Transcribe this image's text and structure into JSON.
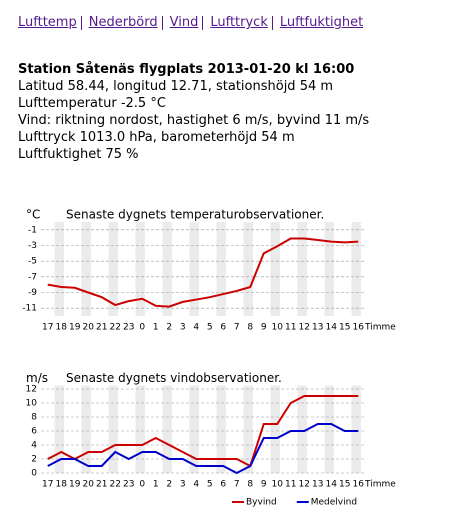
{
  "nav": {
    "links": [
      "Lufttemp",
      "Nederbörd",
      "Vind",
      "Lufttryck",
      "Luftfuktighet"
    ]
  },
  "station": {
    "title": "Station Såtenäs flygplats 2013-01-20 kl 16:00",
    "lines": [
      "Latitud 58.44,  longitud 12.71,  stationshöjd 54 m",
      "Lufttemperatur -2.5 °C",
      "Vind:  riktning nordost,  hastighet 6 m/s,  byvind 11 m/s",
      "Lufttryck 1013.0 hPa,  barometerhöjd 54 m",
      "Luftfuktighet 75 %"
    ]
  },
  "chart_data": [
    {
      "type": "line",
      "title": "Senaste dygnets temperaturobservationer.",
      "y_label": "°C",
      "x_label": "Timme",
      "categories": [
        "17",
        "18",
        "19",
        "20",
        "21",
        "22",
        "23",
        "0",
        "1",
        "2",
        "3",
        "4",
        "5",
        "6",
        "7",
        "8",
        "9",
        "10",
        "11",
        "12",
        "13",
        "14",
        "15",
        "16"
      ],
      "values": [
        -8.0,
        -8.3,
        -8.4,
        -9.0,
        -9.6,
        -10.6,
        -10.1,
        -9.8,
        -10.7,
        -10.8,
        -10.2,
        -9.9,
        -9.6,
        -9.2,
        -8.8,
        -8.3,
        -4.0,
        -3.1,
        -2.1,
        -2.1,
        -2.3,
        -2.5,
        -2.6,
        -2.5
      ],
      "color": "#cc0000",
      "ylim": [
        -12,
        0
      ],
      "yticks": [
        -1,
        -3,
        -5,
        -7,
        -9,
        -11
      ],
      "grid": true
    },
    {
      "type": "line",
      "title": "Senaste dygnets vindobservationer.",
      "y_label": "m/s",
      "x_label": "Timme",
      "categories": [
        "17",
        "18",
        "19",
        "20",
        "21",
        "22",
        "23",
        "0",
        "1",
        "2",
        "3",
        "4",
        "5",
        "6",
        "7",
        "8",
        "9",
        "10",
        "11",
        "12",
        "13",
        "14",
        "15",
        "16"
      ],
      "series": [
        {
          "name": "Byvind",
          "color": "#cc0000",
          "values": [
            2,
            3,
            2,
            3,
            3,
            4,
            4,
            4,
            5,
            4,
            3,
            2,
            2,
            2,
            2,
            1,
            7,
            7,
            10,
            11,
            11,
            11,
            11,
            11
          ]
        },
        {
          "name": "Medelvind",
          "color": "#0000cc",
          "values": [
            1,
            2,
            2,
            1,
            1,
            3,
            2,
            3,
            3,
            2,
            2,
            1,
            1,
            1,
            0,
            1,
            5,
            5,
            6,
            6,
            7,
            7,
            6,
            6
          ]
        }
      ],
      "ylim": [
        0,
        12.5
      ],
      "yticks": [
        0,
        2,
        4,
        6,
        8,
        10,
        12
      ],
      "grid": true,
      "legend": "bottom"
    }
  ]
}
